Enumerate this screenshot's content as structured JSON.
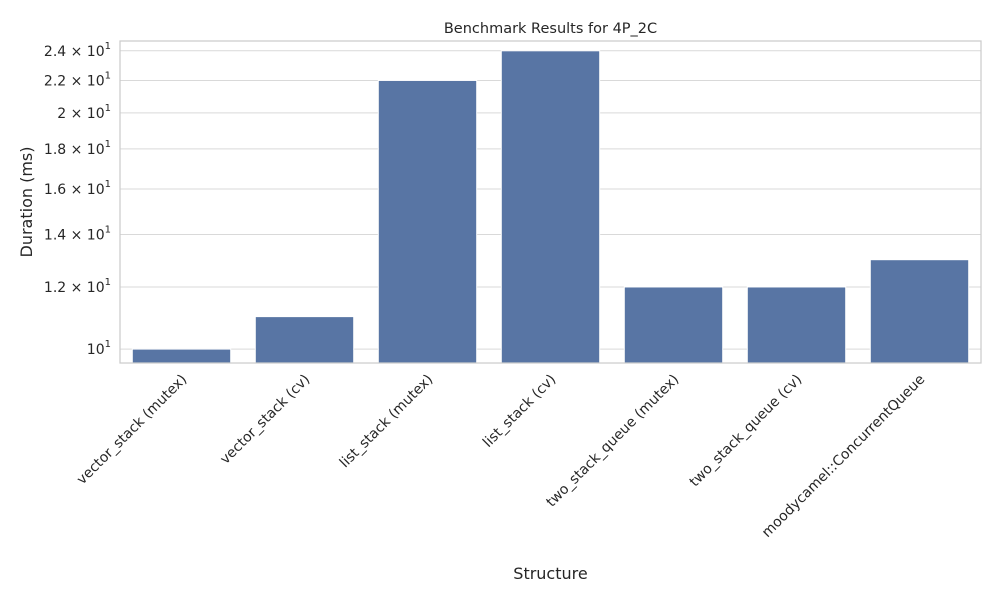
{
  "chart_data": {
    "type": "bar",
    "title": "Benchmark Results for 4P_2C",
    "xlabel": "Structure",
    "ylabel": "Duration (ms)",
    "y_scale": "log",
    "ylim": [
      9.6,
      24.7
    ],
    "grid": true,
    "bar_color": "#5875a4",
    "axes_edge_color": "#cccccc",
    "grid_color": "#d9d9d9",
    "categories": [
      "vector_stack (mutex)",
      "vector_stack (cv)",
      "list_stack (mutex)",
      "list_stack (cv)",
      "two_stack_queue (mutex)",
      "two_stack_queue (cv)",
      "moodycamel::ConcurrentQueue"
    ],
    "values": [
      10,
      11,
      22,
      24,
      12,
      12,
      13
    ],
    "y_ticks": [
      {
        "value": 10,
        "mantissa": "",
        "base": "10",
        "exp": "1"
      },
      {
        "value": 12,
        "mantissa": "1.2 × ",
        "base": "10",
        "exp": "1"
      },
      {
        "value": 14,
        "mantissa": "1.4 × ",
        "base": "10",
        "exp": "1"
      },
      {
        "value": 16,
        "mantissa": "1.6 × ",
        "base": "10",
        "exp": "1"
      },
      {
        "value": 18,
        "mantissa": "1.8 × ",
        "base": "10",
        "exp": "1"
      },
      {
        "value": 20,
        "mantissa": "2 × ",
        "base": "10",
        "exp": "1"
      },
      {
        "value": 22,
        "mantissa": "2.2 × ",
        "base": "10",
        "exp": "1"
      },
      {
        "value": 24,
        "mantissa": "2.4 × ",
        "base": "10",
        "exp": "1"
      }
    ]
  }
}
